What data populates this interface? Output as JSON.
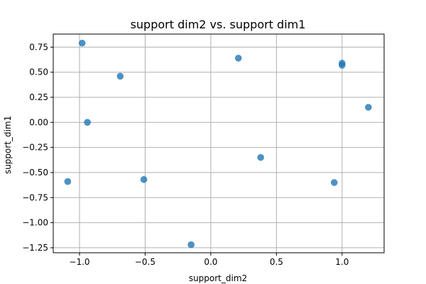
{
  "chart_data": {
    "type": "scatter",
    "title": "support dim2 vs. support dim1",
    "xlabel": "support_dim2",
    "ylabel": "support_dim1",
    "xlim": [
      -1.2,
      1.32
    ],
    "ylim": [
      -1.3,
      0.88
    ],
    "xticks": [
      -1.0,
      -0.5,
      0.0,
      0.5,
      1.0
    ],
    "xtick_labels": [
      "−1.0",
      "−0.5",
      "0.0",
      "0.5",
      "1.0"
    ],
    "yticks": [
      -1.25,
      -1.0,
      -0.75,
      -0.5,
      -0.25,
      0.0,
      0.25,
      0.5,
      0.75
    ],
    "ytick_labels": [
      "−1.25",
      "−1.00",
      "−0.75",
      "−0.50",
      "−0.25",
      "0.00",
      "0.25",
      "0.50",
      "0.75"
    ],
    "grid": true,
    "point_color": "#1f77b4",
    "points": [
      {
        "x": -0.98,
        "y": 0.79
      },
      {
        "x": -0.69,
        "y": 0.46
      },
      {
        "x": 0.21,
        "y": 0.64
      },
      {
        "x": 1.0,
        "y": 0.59
      },
      {
        "x": 1.0,
        "y": 0.57
      },
      {
        "x": 1.2,
        "y": 0.15
      },
      {
        "x": -0.94,
        "y": 0.0
      },
      {
        "x": -1.09,
        "y": -0.59
      },
      {
        "x": -0.51,
        "y": -0.57
      },
      {
        "x": 0.38,
        "y": -0.35
      },
      {
        "x": 0.94,
        "y": -0.6
      },
      {
        "x": -0.15,
        "y": -1.22
      }
    ]
  }
}
